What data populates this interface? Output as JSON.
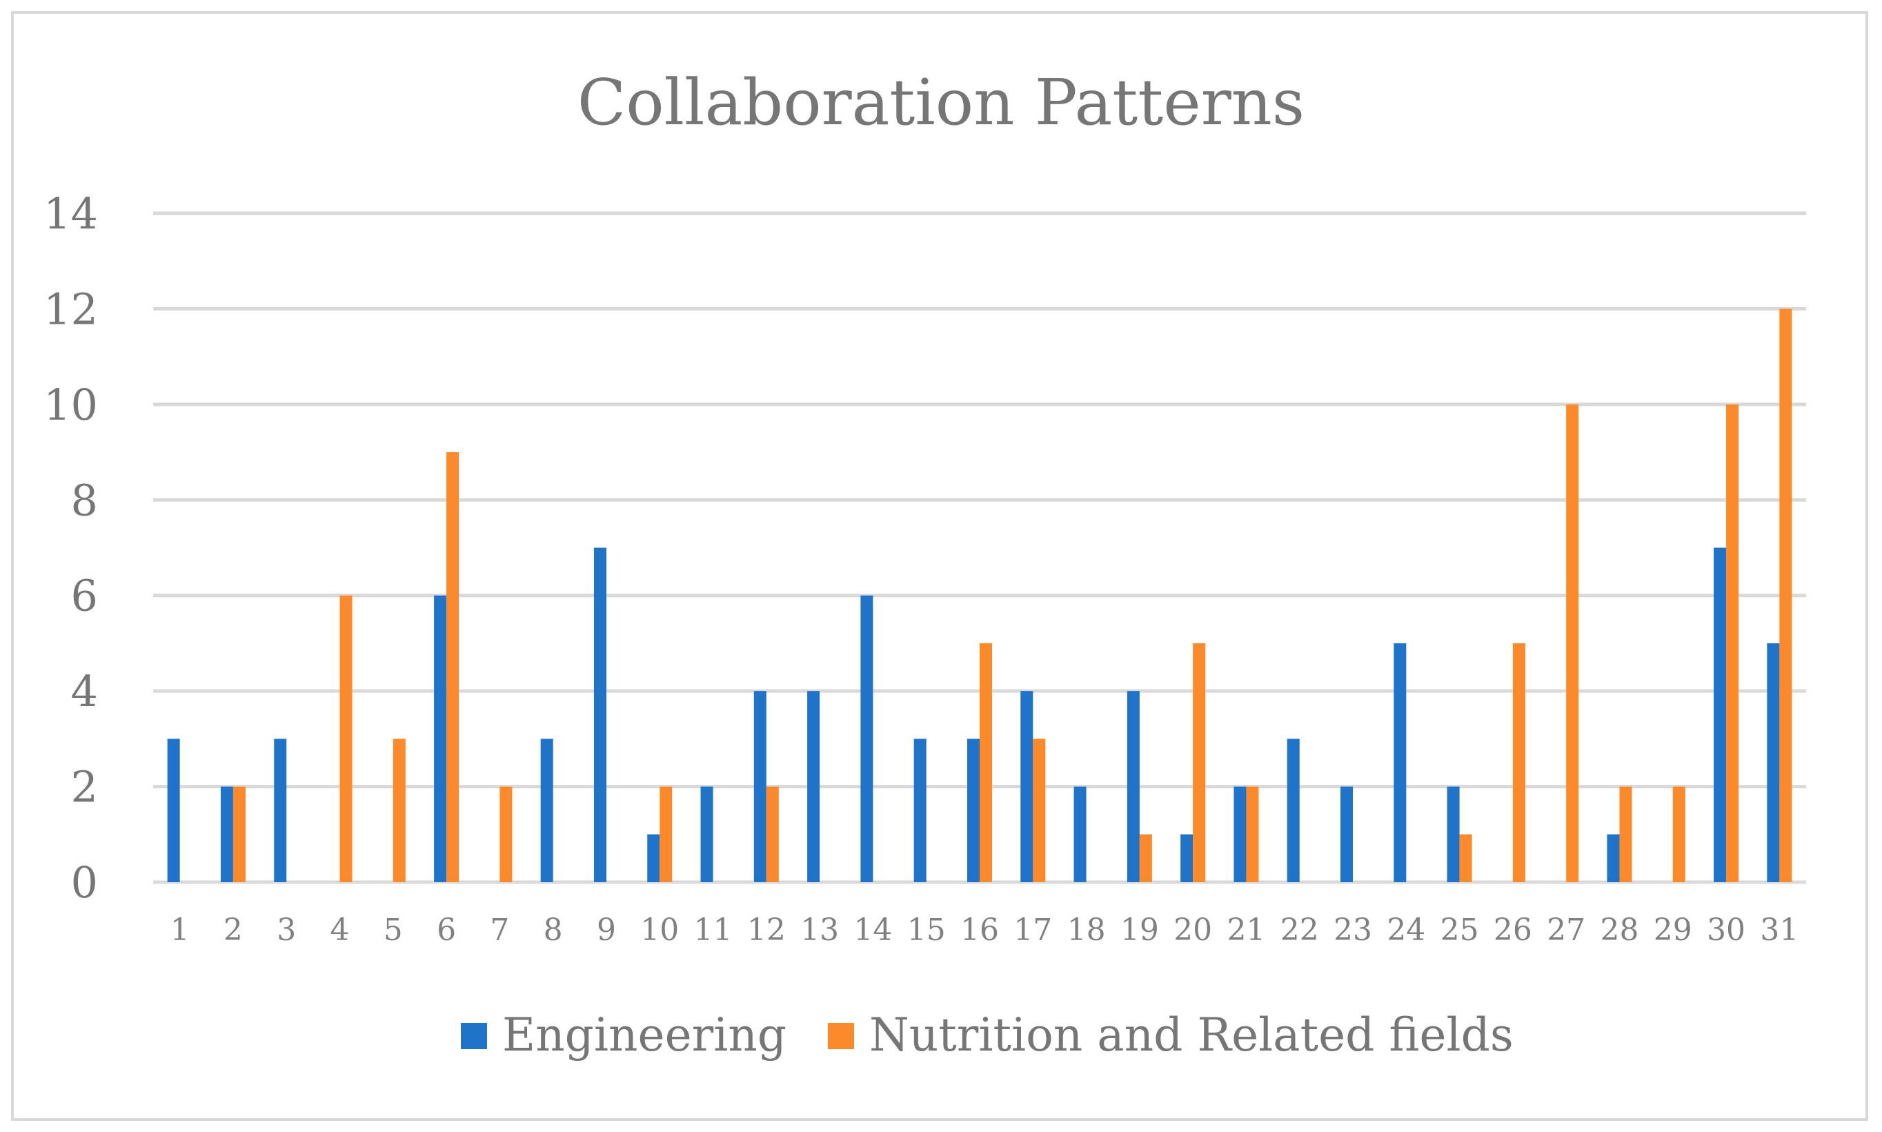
{
  "chart_data": {
    "type": "bar",
    "title": "Collaboration Patterns",
    "xlabel": "",
    "ylabel": "",
    "ylim": [
      0,
      14
    ],
    "yticks": [
      0,
      2,
      4,
      6,
      8,
      10,
      12,
      14
    ],
    "grid": true,
    "legend_position": "bottom",
    "categories": [
      "1",
      "2",
      "3",
      "4",
      "5",
      "6",
      "7",
      "8",
      "9",
      "10",
      "11",
      "12",
      "13",
      "14",
      "15",
      "16",
      "17",
      "18",
      "19",
      "20",
      "21",
      "22",
      "23",
      "24",
      "25",
      "26",
      "27",
      "28",
      "29",
      "30",
      "31"
    ],
    "series": [
      {
        "name": "Engineering",
        "color": "#1f74c9",
        "values": [
          3,
          2,
          3,
          0,
          0,
          6,
          0,
          3,
          7,
          1,
          2,
          4,
          4,
          6,
          3,
          3,
          4,
          2,
          4,
          1,
          2,
          3,
          2,
          5,
          2,
          0,
          0,
          1,
          0,
          7,
          5
        ]
      },
      {
        "name": "Nutrition and Related fields",
        "color": "#fd8a2a",
        "values": [
          0,
          2,
          0,
          6,
          3,
          9,
          2,
          0,
          0,
          2,
          0,
          2,
          0,
          0,
          0,
          5,
          3,
          0,
          1,
          5,
          2,
          0,
          0,
          0,
          1,
          5,
          10,
          2,
          2,
          10,
          12
        ]
      }
    ]
  }
}
